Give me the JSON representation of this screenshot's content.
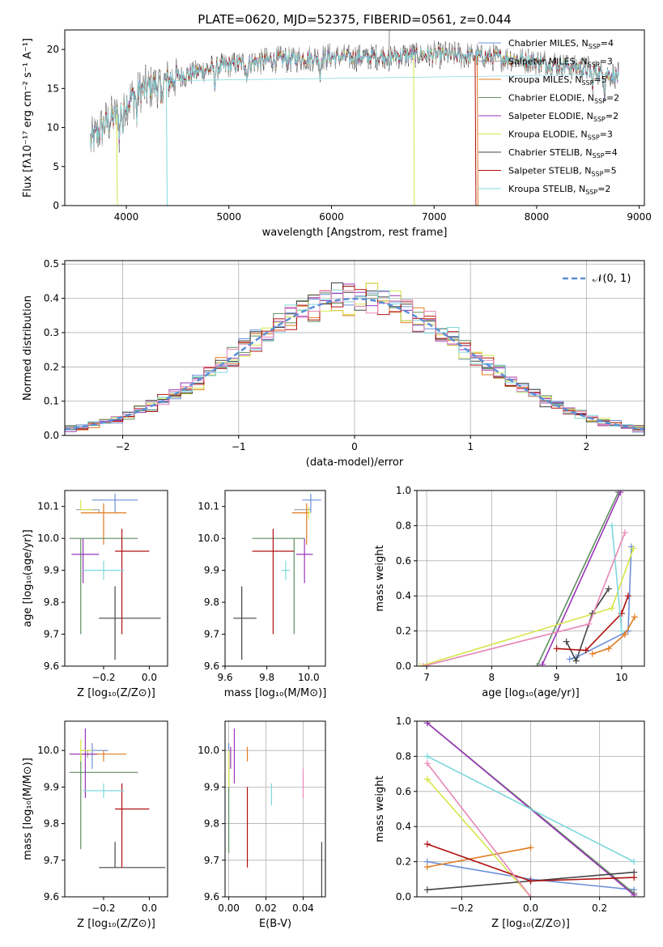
{
  "colors": {
    "chabrier_miles": "#6b8fd8",
    "salpeter_miles": "#a0a0a0",
    "kroupa_miles": "#e07b20",
    "chabrier_elodie": "#5f8f5f",
    "salpeter_elodie": "#9a35b8",
    "kroupa_elodie": "#d6e54a",
    "chabrier_stelib": "#444444",
    "salpeter_stelib": "#b01010",
    "kroupa_stelib": "#7fd8dc",
    "pink": "#e887b8",
    "gauss": "#5b8fd6"
  },
  "chart_data": [
    {
      "id": "spectrum",
      "type": "line",
      "title": "PLATE=0620, MJD=52375, FIBERID=0561, z=0.044",
      "xlabel": "wavelength [Angstrom, rest frame]",
      "ylabel": "Flux [fλ10⁻¹⁷ erg cm⁻² s⁻¹ A⁻¹]",
      "xlim": [
        3400,
        9050
      ],
      "ylim": [
        0,
        22.5
      ],
      "xticks": [
        "4000",
        "5000",
        "6000",
        "7000",
        "8000",
        "9000"
      ],
      "yticks": [
        "0",
        "5",
        "10",
        "15",
        "20"
      ],
      "legend_position": "top-right",
      "legend": [
        {
          "label": "Chabrier MILES, N",
          "sub": "SSP",
          "tail": "=4",
          "color": "chabrier_miles"
        },
        {
          "label": "Salpeter MILES, N",
          "sub": "SSP",
          "tail": "=3",
          "color": "salpeter_miles"
        },
        {
          "label": "Kroupa MILES, N",
          "sub": "SSP",
          "tail": "=5",
          "color": "kroupa_miles"
        },
        {
          "label": "Chabrier ELODIE, N",
          "sub": "SSP",
          "tail": "=2",
          "color": "chabrier_elodie"
        },
        {
          "label": "Salpeter ELODIE, N",
          "sub": "SSP",
          "tail": "=2",
          "color": "salpeter_elodie"
        },
        {
          "label": "Kroupa ELODIE, N",
          "sub": "SSP",
          "tail": "=3",
          "color": "kroupa_elodie"
        },
        {
          "label": "Chabrier STELIB, N",
          "sub": "SSP",
          "tail": "=4",
          "color": "chabrier_stelib"
        },
        {
          "label": "Salpeter STELIB, N",
          "sub": "SSP",
          "tail": "=5",
          "color": "salpeter_stelib"
        },
        {
          "label": "Kroupa STELIB, N",
          "sub": "SSP",
          "tail": "=2",
          "color": "kroupa_stelib"
        }
      ],
      "continuum": [
        [
          3650,
          8
        ],
        [
          3700,
          9
        ],
        [
          3800,
          10.5
        ],
        [
          3900,
          11.5
        ],
        [
          4000,
          13
        ],
        [
          4100,
          14.5
        ],
        [
          4300,
          15.5
        ],
        [
          4500,
          16.5
        ],
        [
          4700,
          17.2
        ],
        [
          5000,
          18
        ],
        [
          5300,
          18.5
        ],
        [
          5600,
          18.8
        ],
        [
          6000,
          19
        ],
        [
          6300,
          19
        ],
        [
          6600,
          19.2
        ],
        [
          7000,
          19.3
        ],
        [
          7300,
          19.2
        ],
        [
          7600,
          19
        ],
        [
          8000,
          18.5
        ],
        [
          8400,
          17.7
        ],
        [
          8800,
          16.5
        ]
      ]
    },
    {
      "id": "residuals",
      "type": "histogram",
      "xlabel": "(data-model)/error",
      "ylabel": "Normed distribution",
      "xlim": [
        -2.5,
        2.5
      ],
      "ylim": [
        0,
        0.51
      ],
      "xticks": [
        "−2",
        "−1",
        "0",
        "1",
        "2"
      ],
      "yticks": [
        "0.0",
        "0.1",
        "0.2",
        "0.3",
        "0.4",
        "0.5"
      ],
      "legend_position": "top-right",
      "gauss_label": "𝒩(0, 1)"
    },
    {
      "id": "age_vs_Z",
      "type": "errorbar",
      "xlabel": "Z [log₁₀(Z/Z⊙)]",
      "ylabel": "age  [log₁₀(age/yr)]",
      "xlim": [
        -0.37,
        0.08
      ],
      "ylim": [
        9.6,
        10.15
      ],
      "xticks": [
        "−0.2",
        "0.0"
      ],
      "yticks": [
        "9.6",
        "9.7",
        "9.8",
        "9.9",
        "10.0",
        "10.1"
      ],
      "points": [
        {
          "x": -0.15,
          "y": 10.12,
          "ex": [
            0.1,
            0.1
          ],
          "ey": [
            0.04,
            0.02
          ],
          "c": "chabrier_miles"
        },
        {
          "x": -0.22,
          "y": 10.09,
          "ex": [
            0.1,
            0.0
          ],
          "ey": [
            0.01,
            0.0
          ],
          "c": "salpeter_miles"
        },
        {
          "x": -0.2,
          "y": 10.08,
          "ex": [
            0.1,
            0.1
          ],
          "ey": [
            0.1,
            0.03
          ],
          "c": "kroupa_miles"
        },
        {
          "x": -0.3,
          "y": 10.0,
          "ex": [
            0.05,
            0.25
          ],
          "ey": [
            0.3,
            0.0
          ],
          "c": "chabrier_elodie"
        },
        {
          "x": -0.29,
          "y": 9.95,
          "ex": [
            0.05,
            0.07
          ],
          "ey": [
            0.09,
            0.05
          ],
          "c": "salpeter_elodie"
        },
        {
          "x": -0.3,
          "y": 10.09,
          "ex": [
            0.0,
            0.05
          ],
          "ey": [
            0.0,
            0.03
          ],
          "c": "kroupa_elodie"
        },
        {
          "x": -0.15,
          "y": 9.75,
          "ex": [
            0.07,
            0.2
          ],
          "ey": [
            0.13,
            0.1
          ],
          "c": "chabrier_stelib"
        },
        {
          "x": -0.12,
          "y": 9.96,
          "ex": [
            0.03,
            0.12
          ],
          "ey": [
            0.26,
            0.07
          ],
          "c": "salpeter_stelib"
        },
        {
          "x": -0.2,
          "y": 9.9,
          "ex": [
            0.09,
            0.09
          ],
          "ey": [
            0.03,
            0.03
          ],
          "c": "kroupa_stelib"
        }
      ]
    },
    {
      "id": "age_vs_mass",
      "type": "errorbar",
      "xlabel": "mass [log₁₀(M/M⊙)]",
      "ylabel": "",
      "xlim": [
        9.6,
        10.08
      ],
      "ylim": [
        9.6,
        10.15
      ],
      "xticks": [
        "9.6",
        "9.8",
        "10.0"
      ],
      "yticks": [
        "9.6",
        "9.7",
        "9.8",
        "9.9",
        "10.0",
        "10.1"
      ],
      "points": [
        {
          "x": 10.01,
          "y": 10.12,
          "ex": [
            0.04,
            0.05
          ],
          "ey": [
            0.04,
            0.02
          ],
          "c": "chabrier_miles"
        },
        {
          "x": 9.99,
          "y": 10.09,
          "ex": [
            0.06,
            0.02
          ],
          "ey": [
            0.0,
            0.0
          ],
          "c": "salpeter_miles"
        },
        {
          "x": 9.99,
          "y": 10.08,
          "ex": [
            0.07,
            0.01
          ],
          "ey": [
            0.1,
            0.03
          ],
          "c": "kroupa_miles"
        },
        {
          "x": 9.93,
          "y": 10.0,
          "ex": [
            0.2,
            0.05
          ],
          "ey": [
            0.3,
            0.0
          ],
          "c": "chabrier_elodie"
        },
        {
          "x": 9.98,
          "y": 9.95,
          "ex": [
            0.04,
            0.04
          ],
          "ey": [
            0.09,
            0.05
          ],
          "c": "salpeter_elodie"
        },
        {
          "x": 10.0,
          "y": 10.08,
          "ex": [
            0.0,
            0.01
          ],
          "ey": [
            0.02,
            0.02
          ],
          "c": "kroupa_elodie"
        },
        {
          "x": 9.68,
          "y": 9.75,
          "ex": [
            0.04,
            0.07
          ],
          "ey": [
            0.13,
            0.1
          ],
          "c": "chabrier_stelib"
        },
        {
          "x": 9.83,
          "y": 9.96,
          "ex": [
            0.1,
            0.1
          ],
          "ey": [
            0.26,
            0.07
          ],
          "c": "salpeter_stelib"
        },
        {
          "x": 9.89,
          "y": 9.9,
          "ex": [
            0.02,
            0.02
          ],
          "ey": [
            0.03,
            0.03
          ],
          "c": "kroupa_stelib"
        }
      ]
    },
    {
      "id": "weight_vs_age",
      "type": "line",
      "xlabel": "age  [log₁₀(age/yr)]",
      "ylabel": "mass weight",
      "xlim": [
        6.85,
        10.35
      ],
      "ylim": [
        0,
        1.0
      ],
      "xticks": [
        "7",
        "8",
        "9",
        "10"
      ],
      "yticks": [
        "0.0",
        "0.2",
        "0.4",
        "0.6",
        "0.8",
        "1.0"
      ],
      "series": [
        {
          "c": "chabrier_miles",
          "x": [
            9.2,
            9.3,
            10.1,
            10.15
          ],
          "y": [
            0.04,
            0.05,
            0.2,
            0.68
          ]
        },
        {
          "c": "kroupa_miles",
          "x": [
            9.55,
            9.8,
            10.05,
            10.2
          ],
          "y": [
            0.07,
            0.1,
            0.18,
            0.28
          ]
        },
        {
          "c": "chabrier_elodie",
          "x": [
            8.7,
            9.95
          ],
          "y": [
            0.0,
            0.99
          ]
        },
        {
          "c": "salpeter_elodie",
          "x": [
            8.78,
            9.98
          ],
          "y": [
            0.01,
            0.99
          ]
        },
        {
          "c": "kroupa_elodie",
          "x": [
            6.9,
            9.85,
            10.18
          ],
          "y": [
            0.0,
            0.33,
            0.67
          ]
        },
        {
          "c": "chabrier_stelib",
          "x": [
            9.15,
            9.3,
            9.55,
            9.8
          ],
          "y": [
            0.14,
            0.03,
            0.3,
            0.44
          ]
        },
        {
          "c": "salpeter_stelib",
          "x": [
            9.0,
            9.45,
            10.0,
            10.1
          ],
          "y": [
            0.1,
            0.09,
            0.3,
            0.4
          ]
        },
        {
          "c": "kroupa_stelib",
          "x": [
            9.85,
            10.0
          ],
          "y": [
            0.8,
            0.2
          ]
        },
        {
          "c": "pink",
          "x": [
            6.95,
            9.5,
            10.05
          ],
          "y": [
            0.0,
            0.24,
            0.76
          ]
        }
      ]
    },
    {
      "id": "mass_vs_Z",
      "type": "errorbar",
      "xlabel": "Z [log₁₀(Z/Z⊙)]",
      "ylabel": "mass [log₁₀(M/M⊙)]",
      "xlim": [
        -0.37,
        0.08
      ],
      "ylim": [
        9.6,
        10.08
      ],
      "xticks": [
        "−0.2",
        "0.0"
      ],
      "yticks": [
        "9.6",
        "9.7",
        "9.8",
        "9.9",
        "10.0"
      ],
      "points": [
        {
          "x": -0.25,
          "y": 10.0,
          "ex": [
            0.05,
            0.07
          ],
          "ey": [
            0.05,
            0.02
          ],
          "c": "chabrier_miles"
        },
        {
          "x": -0.27,
          "y": 9.99,
          "ex": [
            0.07,
            0.05
          ],
          "ey": [
            0.01,
            0.01
          ],
          "c": "salpeter_miles"
        },
        {
          "x": -0.2,
          "y": 9.99,
          "ex": [
            0.1,
            0.1
          ],
          "ey": [
            0.02,
            0.01
          ],
          "c": "kroupa_miles"
        },
        {
          "x": -0.3,
          "y": 9.94,
          "ex": [
            0.05,
            0.25
          ],
          "ey": [
            0.21,
            0.05
          ],
          "c": "chabrier_elodie"
        },
        {
          "x": -0.28,
          "y": 9.99,
          "ex": [
            0.07,
            0.05
          ],
          "ey": [
            0.12,
            0.07
          ],
          "c": "salpeter_elodie"
        },
        {
          "x": -0.3,
          "y": 10.0,
          "ex": [
            0.0,
            0.05
          ],
          "ey": [
            0.03,
            0.03
          ],
          "c": "kroupa_elodie"
        },
        {
          "x": -0.15,
          "y": 9.68,
          "ex": [
            0.07,
            0.22
          ],
          "ey": [
            0.0,
            0.07
          ],
          "c": "chabrier_stelib"
        },
        {
          "x": -0.12,
          "y": 9.84,
          "ex": [
            0.03,
            0.12
          ],
          "ey": [
            0.16,
            0.07
          ],
          "c": "salpeter_stelib"
        },
        {
          "x": -0.2,
          "y": 9.89,
          "ex": [
            0.09,
            0.09
          ],
          "ey": [
            0.02,
            0.02
          ],
          "c": "kroupa_stelib"
        }
      ]
    },
    {
      "id": "mass_vs_EBV",
      "type": "errorbar",
      "xlabel": "E(B-V)",
      "ylabel": "",
      "xlim": [
        -0.002,
        0.052
      ],
      "ylim": [
        9.6,
        10.08
      ],
      "xticks": [
        "0.00",
        "0.02",
        "0.04"
      ],
      "yticks": [
        "9.6",
        "9.7",
        "9.8",
        "9.9",
        "10.0"
      ],
      "points": [
        {
          "x": 0.0,
          "y": 10.0,
          "ex": [
            0,
            0
          ],
          "ey": [
            0.05,
            0.02
          ],
          "c": "chabrier_miles"
        },
        {
          "x": 0.01,
          "y": 9.99,
          "ex": [
            0,
            0
          ],
          "ey": [
            0.02,
            0.02
          ],
          "c": "kroupa_miles"
        },
        {
          "x": 0.0,
          "y": 9.9,
          "ex": [
            0,
            0
          ],
          "ey": [
            0.18,
            0.1
          ],
          "c": "chabrier_elodie"
        },
        {
          "x": 0.001,
          "y": 9.99,
          "ex": [
            0,
            0
          ],
          "ey": [
            0.04,
            0.02
          ],
          "c": "salpeter_elodie"
        },
        {
          "x": 0.003,
          "y": 9.99,
          "ex": [
            0,
            0
          ],
          "ey": [
            0.08,
            0.07
          ],
          "c": "salpeter_elodie"
        },
        {
          "x": 0.0,
          "y": 9.96,
          "ex": [
            0,
            0
          ],
          "ey": [
            0.06,
            0.04
          ],
          "c": "kroupa_elodie"
        },
        {
          "x": 0.05,
          "y": 9.68,
          "ex": [
            0,
            0
          ],
          "ey": [
            0.09,
            0.07
          ],
          "c": "chabrier_stelib"
        },
        {
          "x": 0.01,
          "y": 9.85,
          "ex": [
            0,
            0
          ],
          "ey": [
            0.17,
            0.05
          ],
          "c": "salpeter_stelib"
        },
        {
          "x": 0.023,
          "y": 9.88,
          "ex": [
            0,
            0
          ],
          "ey": [
            0.03,
            0.03
          ],
          "c": "kroupa_stelib"
        },
        {
          "x": 0.04,
          "y": 9.91,
          "ex": [
            0,
            0
          ],
          "ey": [
            0.04,
            0.04
          ],
          "c": "pink"
        }
      ]
    },
    {
      "id": "weight_vs_Z",
      "type": "line",
      "xlabel": "Z [log₁₀(Z/Z⊙)]",
      "ylabel": "mass weight",
      "xlim": [
        -0.33,
        0.33
      ],
      "ylim": [
        0,
        1.0
      ],
      "xticks": [
        "−0.2",
        "0.0",
        "0.2"
      ],
      "yticks": [
        "0.0",
        "0.2",
        "0.4",
        "0.6",
        "0.8",
        "1.0"
      ],
      "series": [
        {
          "c": "chabrier_miles",
          "x": [
            -0.3,
            0.0,
            0.3
          ],
          "y": [
            0.2,
            0.1,
            0.04
          ]
        },
        {
          "c": "kroupa_miles",
          "x": [
            -0.3,
            0.0
          ],
          "y": [
            0.17,
            0.28
          ]
        },
        {
          "c": "chabrier_elodie",
          "x": [
            -0.3,
            0.3
          ],
          "y": [
            0.99,
            0.02
          ]
        },
        {
          "c": "salpeter_elodie",
          "x": [
            -0.3,
            0.3
          ],
          "y": [
            0.99,
            0.01
          ]
        },
        {
          "c": "kroupa_elodie",
          "x": [
            -0.3,
            0.0
          ],
          "y": [
            0.67,
            0.0
          ]
        },
        {
          "c": "chabrier_stelib",
          "x": [
            -0.3,
            0.0,
            0.3
          ],
          "y": [
            0.04,
            0.09,
            0.14
          ]
        },
        {
          "c": "salpeter_stelib",
          "x": [
            -0.3,
            0.0,
            0.3
          ],
          "y": [
            0.3,
            0.09,
            0.11
          ]
        },
        {
          "c": "kroupa_stelib",
          "x": [
            -0.3,
            0.3
          ],
          "y": [
            0.8,
            0.2
          ]
        },
        {
          "c": "pink",
          "x": [
            -0.3,
            0.0
          ],
          "y": [
            0.76,
            0.0
          ]
        }
      ]
    }
  ]
}
